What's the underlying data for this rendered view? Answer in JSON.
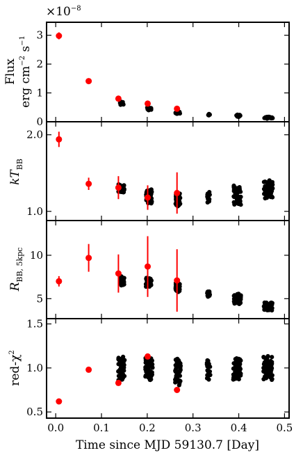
{
  "chart_data": {
    "type": "scatter",
    "xlabel": "Time since MJD 59130.7 [Day]",
    "xlim": [
      -0.02,
      0.51
    ],
    "xticks": [
      0.0,
      0.1,
      0.2,
      0.3,
      0.4,
      0.5
    ],
    "xtick_labels": [
      "0.0",
      "0.1",
      "0.2",
      "0.3",
      "0.4",
      "0.5"
    ],
    "colors": {
      "red": "#ff0000",
      "black": "#000000"
    },
    "panels": [
      {
        "id": "flux",
        "ylabel_line1": "Flux",
        "ylabel_line2": "erg cm",
        "ylabel_unit_exp1": "−2",
        "ylabel_unit_s": " s",
        "ylabel_unit_exp2": "−1",
        "offset_text_base": "×10",
        "offset_text_exp": "−8",
        "ylim": [
          0,
          3.45
        ],
        "yticks": [
          0,
          1,
          2,
          3
        ],
        "ytick_labels": [
          "0",
          "1",
          "2",
          "3"
        ],
        "red_points": [
          {
            "x": 0.007,
            "y": 2.98,
            "err": 0.12
          },
          {
            "x": 0.072,
            "y": 1.41,
            "err": 0.05
          },
          {
            "x": 0.137,
            "y": 0.8,
            "err": 0.04
          },
          {
            "x": 0.201,
            "y": 0.63,
            "err": 0.04
          },
          {
            "x": 0.265,
            "y": 0.45,
            "err": 0.03
          }
        ],
        "black_clusters": [
          {
            "x0": 0.139,
            "x1": 0.148,
            "y0": 0.58,
            "y1": 0.7,
            "n": 12
          },
          {
            "x0": 0.199,
            "x1": 0.21,
            "y0": 0.4,
            "y1": 0.5,
            "n": 14
          },
          {
            "x0": 0.262,
            "x1": 0.272,
            "y0": 0.27,
            "y1": 0.36,
            "n": 12
          },
          {
            "x0": 0.332,
            "x1": 0.337,
            "y0": 0.22,
            "y1": 0.27,
            "n": 5
          },
          {
            "x0": 0.392,
            "x1": 0.404,
            "y0": 0.17,
            "y1": 0.25,
            "n": 14
          },
          {
            "x0": 0.456,
            "x1": 0.474,
            "y0": 0.11,
            "y1": 0.18,
            "n": 16
          }
        ]
      },
      {
        "id": "kT",
        "ylabel_main": "kT",
        "ylabel_sub": "BB",
        "ylim": [
          0.88,
          2.17
        ],
        "yticks": [
          1.0,
          2.0
        ],
        "ytick_labels": [
          "1.0",
          "2.0"
        ],
        "red_points": [
          {
            "x": 0.007,
            "y": 1.94,
            "err": 0.1
          },
          {
            "x": 0.072,
            "y": 1.36,
            "err": 0.08
          },
          {
            "x": 0.137,
            "y": 1.31,
            "err": 0.15
          },
          {
            "x": 0.201,
            "y": 1.18,
            "err": 0.16
          },
          {
            "x": 0.265,
            "y": 1.24,
            "err": 0.27
          }
        ],
        "black_clusters": [
          {
            "x0": 0.137,
            "x1": 0.15,
            "y0": 1.24,
            "y1": 1.35,
            "n": 36
          },
          {
            "x0": 0.197,
            "x1": 0.21,
            "y0": 1.1,
            "y1": 1.29,
            "n": 40
          },
          {
            "x0": 0.262,
            "x1": 0.272,
            "y0": 1.06,
            "y1": 1.25,
            "n": 40
          },
          {
            "x0": 0.331,
            "x1": 0.337,
            "y0": 1.12,
            "y1": 1.25,
            "n": 14
          },
          {
            "x0": 0.389,
            "x1": 0.405,
            "y0": 1.08,
            "y1": 1.34,
            "n": 48
          },
          {
            "x0": 0.455,
            "x1": 0.474,
            "y0": 1.17,
            "y1": 1.4,
            "n": 52
          }
        ]
      },
      {
        "id": "R",
        "ylabel_main": "R",
        "ylabel_sub": "BB, 5kpc",
        "ylim": [
          2.7,
          14.0
        ],
        "yticks": [
          5,
          10
        ],
        "ytick_labels": [
          "5",
          "10"
        ],
        "red_points": [
          {
            "x": 0.007,
            "y": 7.0,
            "err": 0.6
          },
          {
            "x": 0.072,
            "y": 9.7,
            "err": 1.6
          },
          {
            "x": 0.137,
            "y": 7.9,
            "err": 2.2
          },
          {
            "x": 0.201,
            "y": 8.7,
            "err": 3.5
          },
          {
            "x": 0.265,
            "y": 7.1,
            "err": 3.6
          }
        ],
        "black_clusters": [
          {
            "x0": 0.14,
            "x1": 0.15,
            "y0": 6.5,
            "y1": 7.6,
            "n": 36
          },
          {
            "x0": 0.197,
            "x1": 0.21,
            "y0": 6.3,
            "y1": 7.4,
            "n": 40
          },
          {
            "x0": 0.262,
            "x1": 0.272,
            "y0": 5.8,
            "y1": 6.9,
            "n": 40
          },
          {
            "x0": 0.331,
            "x1": 0.337,
            "y0": 5.2,
            "y1": 5.9,
            "n": 14
          },
          {
            "x0": 0.389,
            "x1": 0.405,
            "y0": 4.4,
            "y1": 5.6,
            "n": 48
          },
          {
            "x0": 0.455,
            "x1": 0.474,
            "y0": 3.6,
            "y1": 4.6,
            "n": 52
          }
        ]
      },
      {
        "id": "redchi",
        "ylabel_main": "red-χ",
        "ylabel_sup": "2",
        "ylim": [
          0.43,
          1.56
        ],
        "yticks": [
          0.5,
          1.0,
          1.5
        ],
        "ytick_labels": [
          "0.5",
          "1.0",
          "1.5"
        ],
        "red_points": [
          {
            "x": 0.007,
            "y": 0.62,
            "err": 0
          },
          {
            "x": 0.072,
            "y": 0.98,
            "err": 0
          },
          {
            "x": 0.137,
            "y": 0.83,
            "err": 0
          },
          {
            "x": 0.201,
            "y": 1.13,
            "err": 0
          },
          {
            "x": 0.265,
            "y": 0.75,
            "err": 0
          }
        ],
        "black_clusters": [
          {
            "x0": 0.136,
            "x1": 0.151,
            "y0": 0.84,
            "y1": 1.14,
            "n": 44
          },
          {
            "x0": 0.196,
            "x1": 0.212,
            "y0": 0.86,
            "y1": 1.14,
            "n": 44
          },
          {
            "x0": 0.261,
            "x1": 0.273,
            "y0": 0.81,
            "y1": 1.12,
            "n": 44
          },
          {
            "x0": 0.33,
            "x1": 0.338,
            "y0": 0.86,
            "y1": 1.1,
            "n": 16
          },
          {
            "x0": 0.388,
            "x1": 0.406,
            "y0": 0.84,
            "y1": 1.12,
            "n": 50
          },
          {
            "x0": 0.454,
            "x1": 0.475,
            "y0": 0.86,
            "y1": 1.14,
            "n": 54
          }
        ]
      }
    ]
  }
}
